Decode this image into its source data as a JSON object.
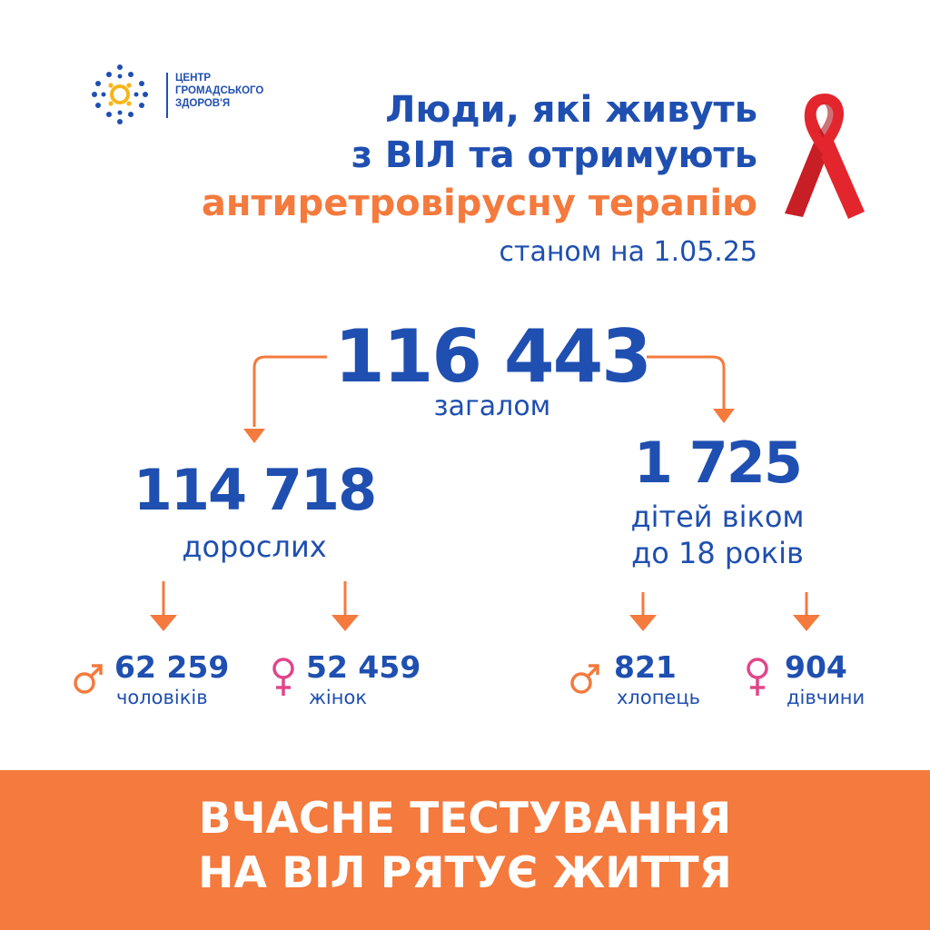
{
  "logo": {
    "lines": [
      "ЦЕНТР",
      "ГРОМАДСЬКОГО",
      "ЗДОРОВ'Я"
    ]
  },
  "title": {
    "line1": "Люди, які живуть",
    "line2": "з ВІЛ та отримують",
    "line3": "антиретровірусну терапію",
    "date": "станом на 1.05.25"
  },
  "total": {
    "value": "116 443",
    "label": "загалом"
  },
  "adults": {
    "value": "114 718",
    "label": "дорослих",
    "male": {
      "value": "62 259",
      "label": "чоловіків",
      "icon": "male-symbol-icon"
    },
    "female": {
      "value": "52 459",
      "label": "жінок",
      "icon": "female-symbol-icon"
    }
  },
  "children": {
    "value": "1 725",
    "label_line1": "дітей віком",
    "label_line2": "до 18 років",
    "male": {
      "value": "821",
      "label": "хлопець",
      "icon": "male-symbol-icon"
    },
    "female": {
      "value": "904",
      "label": "дівчини",
      "icon": "female-symbol-icon"
    }
  },
  "banner": {
    "line1": "ВЧАСНЕ ТЕСТУВАННЯ",
    "line2": "НА ВІЛ РЯТУЄ ЖИТТЯ"
  },
  "colors": {
    "blue": "#1f4fb0",
    "orange": "#f47a3d",
    "pink": "#e0458a",
    "red_ribbon": "#e3262e",
    "logo_yellow": "#f6b51b"
  }
}
